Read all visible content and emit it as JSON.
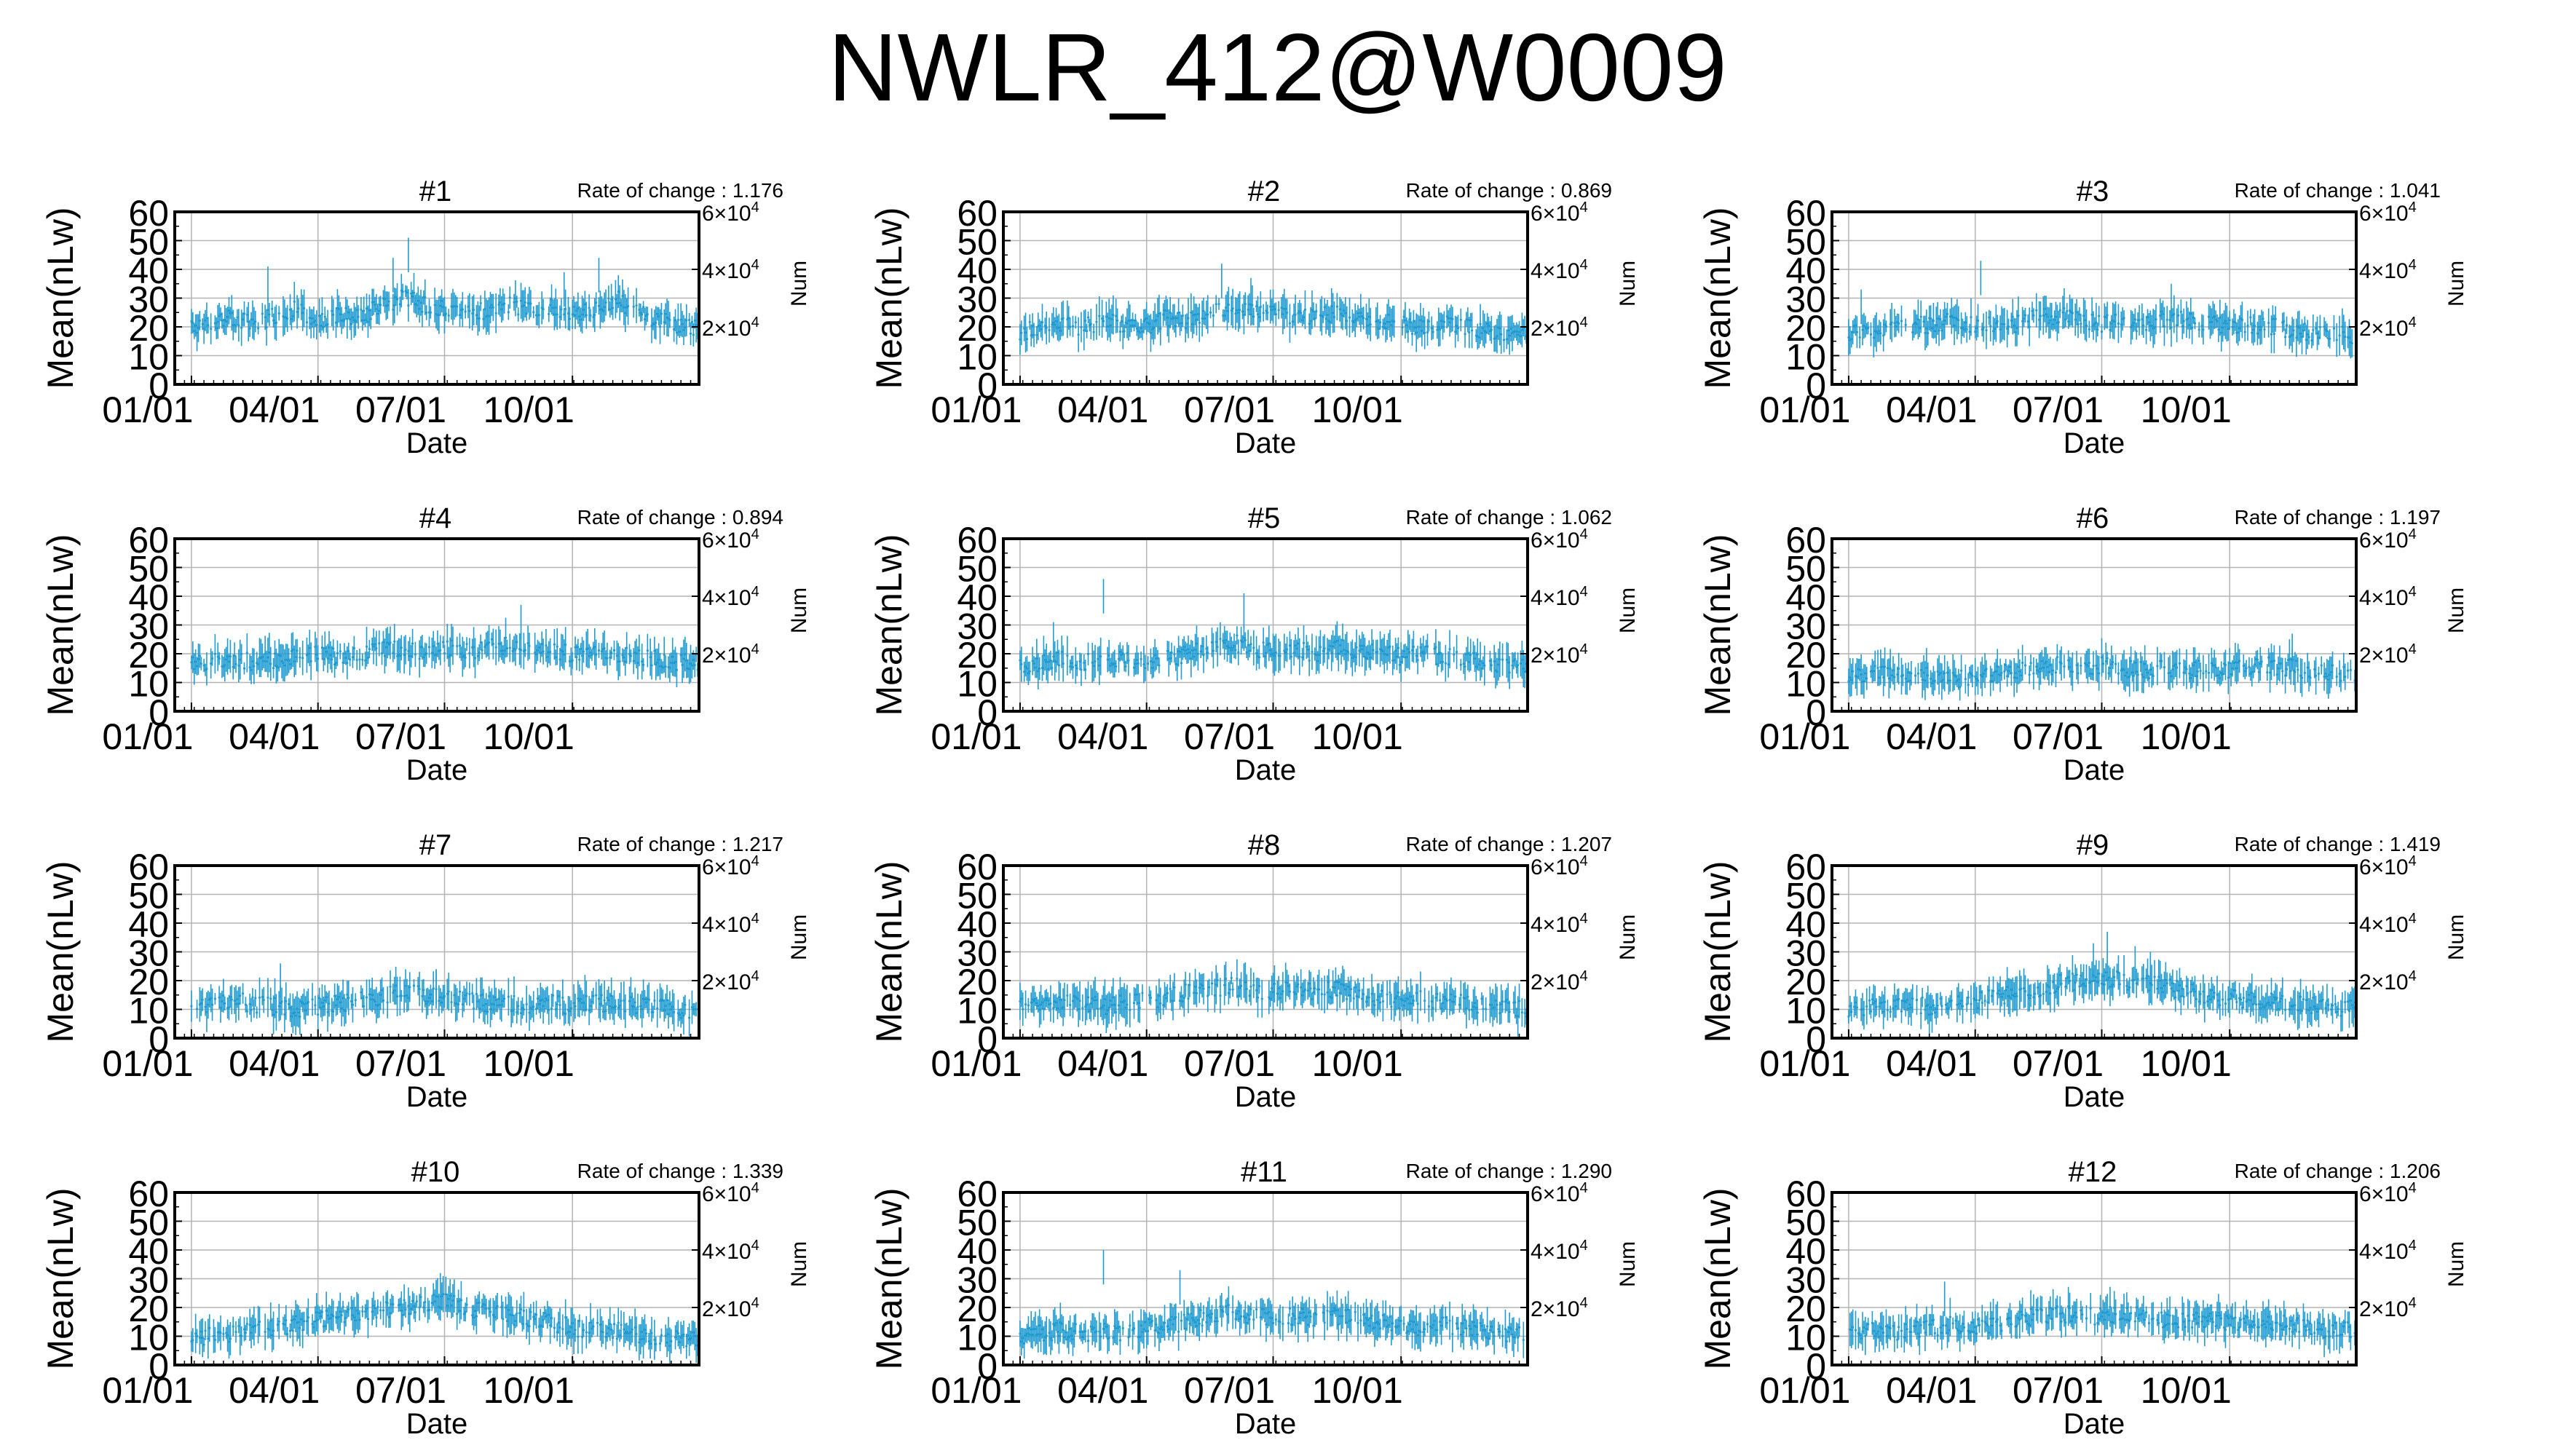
{
  "page": {
    "title": "NWLR_412@W0009"
  },
  "style": {
    "series_color": "#1f9bd1",
    "grid_color": "#b4b4b4",
    "axis_color": "#000000"
  },
  "panel_defaults": {
    "xlabel": "Date",
    "ylabel": "Mean(nLw)",
    "y2label": "Num",
    "ylim": [
      0,
      60
    ],
    "yticks": [
      0,
      10,
      20,
      30,
      40,
      50,
      60
    ],
    "y2lim": [
      0,
      60000
    ],
    "y2ticks": [
      {
        "value": 20000,
        "mantissa": "2",
        "exp": "4"
      },
      {
        "value": 40000,
        "mantissa": "4",
        "exp": "4"
      },
      {
        "value": 60000,
        "mantissa": "6",
        "exp": "4"
      }
    ],
    "xlim": [
      "2019-12-20",
      "2020-12-31"
    ],
    "xticks": [
      {
        "date": "2020-01-01",
        "label": "01/01"
      },
      {
        "date": "2020-04-01",
        "label": "04/01"
      },
      {
        "date": "2020-07-01",
        "label": "07/01"
      },
      {
        "date": "2020-10-01",
        "label": "10/01"
      }
    ],
    "grid": true,
    "rate_prefix": "Rate of change : "
  },
  "chart_data": [
    {
      "type": "line",
      "title": "#1",
      "rate_of_change": "1.176",
      "series": [
        {
          "dates": [
            "2020-01-01",
            "2020-01-15",
            "2020-02-01",
            "2020-02-15",
            "2020-03-01",
            "2020-03-15",
            "2020-04-01",
            "2020-04-15",
            "2020-05-01",
            "2020-05-15",
            "2020-06-01",
            "2020-06-15",
            "2020-07-01",
            "2020-07-15",
            "2020-08-01",
            "2020-08-15",
            "2020-09-01",
            "2020-09-15",
            "2020-10-01",
            "2020-10-15",
            "2020-11-01",
            "2020-11-15",
            "2020-12-01",
            "2020-12-15",
            "2020-12-30"
          ],
          "values": [
            20,
            22,
            23,
            21,
            24,
            26,
            22,
            24,
            23,
            27,
            30,
            28,
            26,
            27,
            25,
            28,
            26,
            27,
            24,
            26,
            30,
            25,
            22,
            21,
            20
          ]
        }
      ],
      "spikes": [
        {
          "date": "2020-06-05",
          "value": 51
        },
        {
          "date": "2020-05-25",
          "value": 44
        },
        {
          "date": "2020-02-25",
          "value": 41
        },
        {
          "date": "2020-10-20",
          "value": 44
        },
        {
          "date": "2020-09-25",
          "value": 39
        }
      ]
    },
    {
      "type": "line",
      "title": "#2",
      "rate_of_change": "0.869",
      "series": [
        {
          "dates": [
            "2020-01-01",
            "2020-01-15",
            "2020-02-01",
            "2020-02-15",
            "2020-03-01",
            "2020-03-15",
            "2020-04-01",
            "2020-04-15",
            "2020-05-01",
            "2020-05-15",
            "2020-06-01",
            "2020-06-15",
            "2020-07-01",
            "2020-07-15",
            "2020-08-01",
            "2020-08-15",
            "2020-09-01",
            "2020-09-15",
            "2020-10-01",
            "2020-10-15",
            "2020-11-01",
            "2020-11-15",
            "2020-12-01",
            "2020-12-15",
            "2020-12-30"
          ],
          "values": [
            18,
            20,
            21,
            20,
            22,
            21,
            20,
            23,
            22,
            25,
            27,
            26,
            25,
            24,
            23,
            25,
            24,
            22,
            21,
            20,
            22,
            20,
            19,
            18,
            18
          ]
        }
      ],
      "spikes": [
        {
          "date": "2020-05-25",
          "value": 42
        },
        {
          "date": "2020-06-15",
          "value": 37
        }
      ]
    },
    {
      "type": "line",
      "title": "#3",
      "rate_of_change": "1.041",
      "series": [
        {
          "dates": [
            "2020-01-01",
            "2020-01-15",
            "2020-02-01",
            "2020-02-15",
            "2020-03-01",
            "2020-03-15",
            "2020-04-01",
            "2020-04-15",
            "2020-05-01",
            "2020-05-15",
            "2020-06-01",
            "2020-06-15",
            "2020-07-01",
            "2020-07-15",
            "2020-08-01",
            "2020-08-15",
            "2020-09-01",
            "2020-09-15",
            "2020-10-01",
            "2020-10-15",
            "2020-11-01",
            "2020-11-15",
            "2020-12-01",
            "2020-12-15",
            "2020-12-30"
          ],
          "values": [
            17,
            19,
            20,
            21,
            20,
            22,
            21,
            20,
            21,
            23,
            24,
            22,
            21,
            22,
            21,
            23,
            22,
            21,
            20,
            21,
            20,
            19,
            18,
            18,
            17
          ]
        }
      ],
      "spikes": [
        {
          "date": "2020-04-05",
          "value": 43
        },
        {
          "date": "2020-08-20",
          "value": 35
        },
        {
          "date": "2020-01-10",
          "value": 33
        }
      ]
    },
    {
      "type": "line",
      "title": "#4",
      "rate_of_change": "0.894",
      "series": [
        {
          "dates": [
            "2020-01-01",
            "2020-01-15",
            "2020-02-01",
            "2020-02-15",
            "2020-03-01",
            "2020-03-15",
            "2020-04-01",
            "2020-04-15",
            "2020-05-01",
            "2020-05-15",
            "2020-06-01",
            "2020-06-15",
            "2020-07-01",
            "2020-07-15",
            "2020-08-01",
            "2020-08-15",
            "2020-09-01",
            "2020-09-15",
            "2020-10-01",
            "2020-10-15",
            "2020-11-01",
            "2020-11-15",
            "2020-12-01",
            "2020-12-15",
            "2020-12-30"
          ],
          "values": [
            16,
            17,
            18,
            17,
            18,
            19,
            20,
            19,
            20,
            21,
            22,
            21,
            22,
            21,
            22,
            23,
            22,
            21,
            20,
            21,
            20,
            19,
            18,
            17,
            17
          ]
        }
      ],
      "spikes": [
        {
          "date": "2020-08-25",
          "value": 37
        }
      ]
    },
    {
      "type": "line",
      "title": "#5",
      "rate_of_change": "1.062",
      "series": [
        {
          "dates": [
            "2020-01-01",
            "2020-01-15",
            "2020-02-01",
            "2020-02-15",
            "2020-03-01",
            "2020-03-15",
            "2020-04-01",
            "2020-04-15",
            "2020-05-01",
            "2020-05-15",
            "2020-06-01",
            "2020-06-15",
            "2020-07-01",
            "2020-07-15",
            "2020-08-01",
            "2020-08-15",
            "2020-09-01",
            "2020-09-15",
            "2020-10-01",
            "2020-10-15",
            "2020-11-01",
            "2020-11-15",
            "2020-12-01",
            "2020-12-15",
            "2020-12-30"
          ],
          "values": [
            15,
            17,
            18,
            17,
            19,
            18,
            17,
            18,
            20,
            22,
            24,
            22,
            21,
            22,
            20,
            22,
            21,
            20,
            19,
            20,
            19,
            18,
            17,
            16,
            16
          ]
        }
      ],
      "spikes": [
        {
          "date": "2020-03-01",
          "value": 46
        },
        {
          "date": "2020-06-10",
          "value": 41
        },
        {
          "date": "2020-01-25",
          "value": 31
        }
      ]
    },
    {
      "type": "line",
      "title": "#6",
      "rate_of_change": "1.197",
      "series": [
        {
          "dates": [
            "2020-01-01",
            "2020-01-15",
            "2020-02-01",
            "2020-02-15",
            "2020-03-01",
            "2020-03-15",
            "2020-04-01",
            "2020-04-15",
            "2020-05-01",
            "2020-05-15",
            "2020-06-01",
            "2020-06-15",
            "2020-07-01",
            "2020-07-15",
            "2020-08-01",
            "2020-08-15",
            "2020-09-01",
            "2020-09-15",
            "2020-10-01",
            "2020-10-15",
            "2020-11-01",
            "2020-11-15",
            "2020-12-01",
            "2020-12-15",
            "2020-12-30"
          ],
          "values": [
            12,
            13,
            14,
            13,
            12,
            11,
            12,
            13,
            14,
            15,
            16,
            15,
            16,
            15,
            14,
            15,
            14,
            15,
            14,
            15,
            16,
            15,
            14,
            13,
            13
          ]
        }
      ],
      "spikes": [
        {
          "date": "2020-11-15",
          "value": 27
        }
      ]
    },
    {
      "type": "line",
      "title": "#7",
      "rate_of_change": "1.217",
      "series": [
        {
          "dates": [
            "2020-01-01",
            "2020-01-15",
            "2020-02-01",
            "2020-02-15",
            "2020-03-01",
            "2020-03-15",
            "2020-04-01",
            "2020-04-15",
            "2020-05-01",
            "2020-05-15",
            "2020-06-01",
            "2020-06-15",
            "2020-07-01",
            "2020-07-15",
            "2020-08-01",
            "2020-08-15",
            "2020-09-01",
            "2020-09-15",
            "2020-10-01",
            "2020-10-15",
            "2020-11-01",
            "2020-11-15",
            "2020-12-01",
            "2020-12-15",
            "2020-12-30"
          ],
          "values": [
            11,
            12,
            13,
            12,
            11,
            10,
            11,
            12,
            13,
            14,
            16,
            15,
            14,
            13,
            12,
            12,
            11,
            12,
            11,
            12,
            12,
            11,
            11,
            10,
            10
          ]
        }
      ],
      "spikes": [
        {
          "date": "2020-03-05",
          "value": 26
        },
        {
          "date": "2020-06-25",
          "value": 24
        },
        {
          "date": "2020-10-10",
          "value": 22
        }
      ]
    },
    {
      "type": "line",
      "title": "#8",
      "rate_of_change": "1.207",
      "series": [
        {
          "dates": [
            "2020-01-01",
            "2020-01-15",
            "2020-02-01",
            "2020-02-15",
            "2020-03-01",
            "2020-03-15",
            "2020-04-01",
            "2020-04-15",
            "2020-05-01",
            "2020-05-15",
            "2020-06-01",
            "2020-06-15",
            "2020-07-01",
            "2020-07-15",
            "2020-08-01",
            "2020-08-15",
            "2020-09-01",
            "2020-09-15",
            "2020-10-01",
            "2020-10-15",
            "2020-11-01",
            "2020-11-15",
            "2020-12-01",
            "2020-12-15",
            "2020-12-30"
          ],
          "values": [
            11,
            12,
            13,
            12,
            11,
            12,
            13,
            14,
            16,
            17,
            18,
            17,
            16,
            17,
            16,
            17,
            15,
            14,
            13,
            14,
            13,
            12,
            11,
            11,
            10
          ]
        }
      ],
      "spikes": [
        {
          "date": "2020-06-10",
          "value": 26
        },
        {
          "date": "2020-08-10",
          "value": 24
        }
      ]
    },
    {
      "type": "line",
      "title": "#9",
      "rate_of_change": "1.419",
      "series": [
        {
          "dates": [
            "2020-01-01",
            "2020-01-15",
            "2020-02-01",
            "2020-02-15",
            "2020-03-01",
            "2020-03-15",
            "2020-04-01",
            "2020-04-15",
            "2020-05-01",
            "2020-05-15",
            "2020-06-01",
            "2020-06-15",
            "2020-07-01",
            "2020-07-15",
            "2020-08-01",
            "2020-08-15",
            "2020-09-01",
            "2020-09-15",
            "2020-10-01",
            "2020-10-15",
            "2020-11-01",
            "2020-11-15",
            "2020-12-01",
            "2020-12-15",
            "2020-12-30"
          ],
          "values": [
            10,
            11,
            11,
            12,
            11,
            12,
            13,
            14,
            16,
            17,
            19,
            20,
            21,
            20,
            19,
            18,
            16,
            15,
            14,
            13,
            13,
            12,
            11,
            11,
            10
          ]
        }
      ],
      "spikes": [
        {
          "date": "2020-07-05",
          "value": 37
        },
        {
          "date": "2020-06-25",
          "value": 33
        },
        {
          "date": "2020-07-25",
          "value": 32
        },
        {
          "date": "2020-08-05",
          "value": 30
        }
      ]
    },
    {
      "type": "line",
      "title": "#10",
      "rate_of_change": "1.339",
      "series": [
        {
          "dates": [
            "2020-01-01",
            "2020-01-15",
            "2020-02-01",
            "2020-02-15",
            "2020-03-01",
            "2020-03-15",
            "2020-04-01",
            "2020-04-15",
            "2020-05-01",
            "2020-05-15",
            "2020-06-01",
            "2020-06-15",
            "2020-07-01",
            "2020-07-15",
            "2020-08-01",
            "2020-08-15",
            "2020-09-01",
            "2020-09-15",
            "2020-10-01",
            "2020-10-15",
            "2020-11-01",
            "2020-11-15",
            "2020-12-01",
            "2020-12-15",
            "2020-12-30"
          ],
          "values": [
            9,
            10,
            11,
            12,
            13,
            14,
            16,
            17,
            18,
            19,
            20,
            21,
            22,
            20,
            18,
            17,
            16,
            15,
            13,
            12,
            12,
            11,
            10,
            9,
            9
          ]
        }
      ],
      "spikes": [
        {
          "date": "2020-06-28",
          "value": 32
        },
        {
          "date": "2020-05-20",
          "value": 25
        }
      ]
    },
    {
      "type": "line",
      "title": "#11",
      "rate_of_change": "1.290",
      "series": [
        {
          "dates": [
            "2020-01-01",
            "2020-01-15",
            "2020-02-01",
            "2020-02-15",
            "2020-03-01",
            "2020-03-15",
            "2020-04-01",
            "2020-04-15",
            "2020-05-01",
            "2020-05-15",
            "2020-06-01",
            "2020-06-15",
            "2020-07-01",
            "2020-07-15",
            "2020-08-01",
            "2020-08-15",
            "2020-09-01",
            "2020-09-15",
            "2020-10-01",
            "2020-10-15",
            "2020-11-01",
            "2020-11-15",
            "2020-12-01",
            "2020-12-15",
            "2020-12-30"
          ],
          "values": [
            10,
            11,
            12,
            11,
            12,
            11,
            13,
            14,
            15,
            17,
            18,
            17,
            16,
            17,
            16,
            17,
            16,
            15,
            14,
            13,
            14,
            13,
            12,
            11,
            11
          ]
        }
      ],
      "spikes": [
        {
          "date": "2020-03-01",
          "value": 40
        },
        {
          "date": "2020-04-25",
          "value": 33
        }
      ]
    },
    {
      "type": "line",
      "title": "#12",
      "rate_of_change": "1.206",
      "series": [
        {
          "dates": [
            "2020-01-01",
            "2020-01-15",
            "2020-02-01",
            "2020-02-15",
            "2020-03-01",
            "2020-03-15",
            "2020-04-01",
            "2020-04-15",
            "2020-05-01",
            "2020-05-15",
            "2020-06-01",
            "2020-06-15",
            "2020-07-01",
            "2020-07-15",
            "2020-08-01",
            "2020-08-15",
            "2020-09-01",
            "2020-09-15",
            "2020-10-01",
            "2020-10-15",
            "2020-11-01",
            "2020-11-15",
            "2020-12-01",
            "2020-12-15",
            "2020-12-30"
          ],
          "values": [
            11,
            12,
            11,
            12,
            13,
            14,
            13,
            14,
            16,
            17,
            18,
            17,
            17,
            18,
            17,
            16,
            15,
            16,
            15,
            14,
            15,
            14,
            13,
            12,
            12
          ]
        }
      ],
      "spikes": [
        {
          "date": "2020-03-10",
          "value": 29
        }
      ]
    }
  ]
}
